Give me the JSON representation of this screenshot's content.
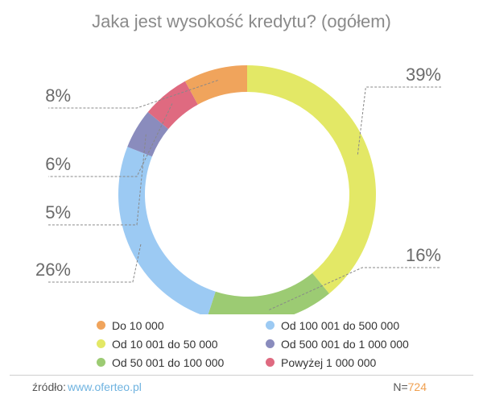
{
  "chart_data": {
    "type": "pie",
    "variant": "donut",
    "title": "Jaka jest wysokość kredytu? (ogółem)",
    "value_suffix": "%",
    "slices": [
      {
        "label": "Od 10 001 do 50 000",
        "value": 39,
        "color": "#e3e866"
      },
      {
        "label": "Od 50 001 do 100 000",
        "value": 16,
        "color": "#9ccb73"
      },
      {
        "label": "Od 100 001 do 500 000",
        "value": 26,
        "color": "#9ccaf3"
      },
      {
        "label": "Od 500 001 do 1 000 000",
        "value": 5,
        "color": "#8a8cbd"
      },
      {
        "label": "Powyżej 1 000 000",
        "value": 6,
        "color": "#df6a80"
      },
      {
        "label": "Do 10 000",
        "value": 8,
        "color": "#f0a45c"
      }
    ],
    "legend": [
      {
        "label": "Do 10 000",
        "color": "#f0a45c"
      },
      {
        "label": "Od 100 001 do 500 000",
        "color": "#9ccaf3"
      },
      {
        "label": "Od 10 001 do 50 000",
        "color": "#e3e866"
      },
      {
        "label": "Od 500 001 do 1 000 000",
        "color": "#8a8cbd"
      },
      {
        "label": "Od 50 001 do 100 000",
        "color": "#9ccb73"
      },
      {
        "label": "Powyżej 1 000 000",
        "color": "#df6a80"
      }
    ]
  },
  "footer": {
    "source_label": "źródło:",
    "source_link": "www.oferteo.pl",
    "sample_label": "N=",
    "sample_value": "724"
  }
}
